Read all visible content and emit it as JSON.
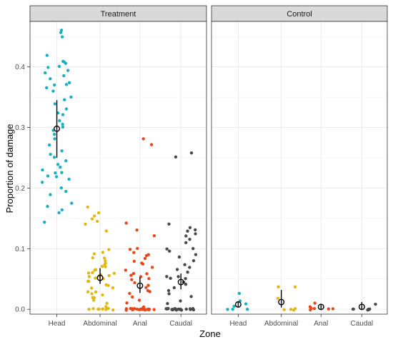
{
  "chart_data": {
    "type": "scatter",
    "subtype": "faceted jitter strip plot with mean and interval",
    "xlabel": "Zone",
    "ylabel": "Proportion of damage",
    "ylim": [
      -0.008,
      0.475
    ],
    "yticks": [
      0.0,
      0.1,
      0.2,
      0.3,
      0.4
    ],
    "ytick_labels": [
      "0.0",
      "0.1",
      "0.2",
      "0.3",
      "0.4"
    ],
    "categories": [
      "Head",
      "Abdominal",
      "Anal",
      "Caudal"
    ],
    "grid": true,
    "colors": {
      "Head": "#17b2c2",
      "Abdominal": "#e2b814",
      "Anal": "#e8471a",
      "Caudal": "#4a4a4a",
      "strip_bg": "#d9d9d9",
      "panel_border": "#333333",
      "grid": "#ebebeb"
    },
    "facets": [
      {
        "title": "Treatment",
        "groups": [
          {
            "zone": "Head",
            "points": [
              0.46,
              0.458,
              0.45,
              0.42,
              0.41,
              0.408,
              0.405,
              0.4,
              0.4,
              0.395,
              0.39,
              0.385,
              0.38,
              0.375,
              0.37,
              0.37,
              0.365,
              0.36,
              0.35,
              0.345,
              0.34,
              0.33,
              0.325,
              0.32,
              0.31,
              0.305,
              0.3,
              0.295,
              0.29,
              0.28,
              0.27,
              0.26,
              0.255,
              0.25,
              0.245,
              0.24,
              0.235,
              0.23,
              0.225,
              0.225,
              0.22,
              0.22,
              0.215,
              0.21,
              0.2,
              0.195,
              0.19,
              0.175,
              0.17,
              0.165,
              0.16,
              0.145
            ],
            "mean": 0.298,
            "interval": [
              0.25,
              0.345
            ]
          },
          {
            "zone": "Abdominal",
            "points": [
              0.168,
              0.16,
              0.155,
              0.15,
              0.145,
              0.14,
              0.13,
              0.1,
              0.095,
              0.09,
              0.085,
              0.085,
              0.08,
              0.075,
              0.075,
              0.07,
              0.07,
              0.065,
              0.065,
              0.06,
              0.06,
              0.06,
              0.058,
              0.055,
              0.055,
              0.055,
              0.05,
              0.05,
              0.045,
              0.045,
              0.04,
              0.04,
              0.035,
              0.035,
              0.03,
              0.03,
              0.025,
              0.025,
              0.02,
              0.02,
              0.015,
              0.01,
              0.005,
              0.0,
              0.0,
              0.0,
              0.0,
              0.0,
              0.0,
              0.0,
              0.0,
              0.0
            ],
            "mean": 0.052,
            "interval": [
              0.042,
              0.068
            ]
          },
          {
            "zone": "Anal",
            "points": [
              0.281,
              0.271,
              0.142,
              0.132,
              0.12,
              0.1,
              0.1,
              0.095,
              0.09,
              0.09,
              0.085,
              0.08,
              0.075,
              0.075,
              0.07,
              0.065,
              0.06,
              0.06,
              0.055,
              0.055,
              0.05,
              0.05,
              0.045,
              0.04,
              0.035,
              0.03,
              0.03,
              0.025,
              0.02,
              0.015,
              0.01,
              0.005,
              0.0,
              0.0,
              0.0,
              0.0,
              0.0,
              0.0,
              0.0,
              0.0,
              0.0,
              0.0,
              0.0,
              0.0,
              0.0,
              0.0,
              0.0,
              0.0,
              0.0,
              0.0,
              0.0,
              0.0
            ],
            "mean": 0.039,
            "interval": [
              0.027,
              0.053
            ]
          },
          {
            "zone": "Caudal",
            "points": [
              0.258,
              0.25,
              0.142,
              0.135,
              0.132,
              0.13,
              0.125,
              0.12,
              0.115,
              0.11,
              0.1,
              0.1,
              0.095,
              0.09,
              0.085,
              0.08,
              0.075,
              0.07,
              0.065,
              0.06,
              0.055,
              0.055,
              0.05,
              0.05,
              0.045,
              0.04,
              0.035,
              0.03,
              0.025,
              0.02,
              0.015,
              0.01,
              0.0,
              0.0,
              0.0,
              0.0,
              0.0,
              0.0,
              0.0,
              0.0,
              0.0,
              0.0,
              0.0,
              0.0,
              0.0,
              0.0,
              0.0,
              0.0,
              0.0,
              0.0,
              0.0,
              0.0
            ],
            "mean": 0.045,
            "interval": [
              0.033,
              0.059
            ]
          }
        ]
      },
      {
        "title": "Control",
        "groups": [
          {
            "zone": "Head",
            "points": [
              0.025,
              0.015,
              0.01,
              0.005,
              0.0,
              0.0,
              0.0
            ],
            "mean": 0.008,
            "interval": [
              0.003,
              0.013
            ]
          },
          {
            "zone": "Abdominal",
            "points": [
              0.038,
              0.037,
              0.018,
              0.0,
              0.0,
              0.0,
              0.0
            ],
            "mean": 0.012,
            "interval": [
              0.003,
              0.032
            ]
          },
          {
            "zone": "Anal",
            "points": [
              0.01,
              0.005,
              0.0,
              0.0,
              0.0,
              0.0,
              0.0
            ],
            "mean": 0.004,
            "interval": [
              0.0,
              0.009
            ]
          },
          {
            "zone": "Caudal",
            "points": [
              0.008,
              0.0,
              0.0,
              0.0,
              0.0,
              0.0,
              0.0
            ],
            "mean": 0.004,
            "interval": [
              0.0,
              0.012
            ]
          }
        ]
      }
    ]
  }
}
